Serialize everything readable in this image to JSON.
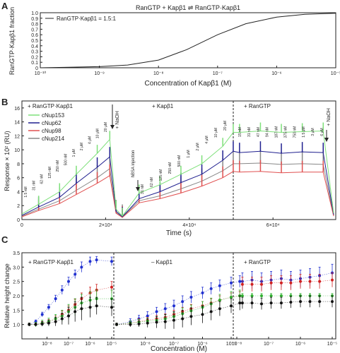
{
  "panel_labels": [
    "A",
    "B",
    "C"
  ],
  "colors": {
    "cNup153": "#7ee07a",
    "cNup62": "#1f1f8f",
    "cNup98": "#e05050",
    "cNup214": "#888888",
    "blue": "#2030d0",
    "red": "#d02020",
    "green": "#30b030",
    "black": "#111111",
    "axis": "#222222"
  },
  "chart_data": [
    {
      "panel": "A",
      "type": "line",
      "title": "RanGTP + Kapβ1 ⇌ RanGTP·Kapβ1",
      "legend": [
        "RanGTP·Kapβ1 = 1.5:1"
      ],
      "legend_position": "top-left",
      "xlabel": "Concentration of Kapβ1 (M)",
      "ylabel": "RanGTP·Kapβ1 fraction",
      "xscale": "log",
      "xlim": [
        1e-10,
        1e-05
      ],
      "ylim": [
        0,
        1.0
      ],
      "xticks": [
        "10⁻¹⁰",
        "10⁻⁹",
        "10⁻⁸",
        "10⁻⁷",
        "10⁻⁶",
        "10⁻⁵"
      ],
      "yticks": [
        "0",
        "0.1",
        "0.2",
        "0.3",
        "0.4",
        "0.5",
        "0.6",
        "0.7",
        "0.8",
        "0.9",
        "1.0"
      ],
      "series": [
        {
          "name": "RanGTP·Kapβ1 = 1.5:1",
          "x": [
            1e-10,
            3e-10,
            1e-09,
            3e-09,
            1e-08,
            3e-08,
            1e-07,
            3e-07,
            1e-06,
            3e-06,
            1e-05
          ],
          "values": [
            0.0,
            0.01,
            0.02,
            0.05,
            0.14,
            0.33,
            0.6,
            0.8,
            0.92,
            0.97,
            0.99
          ]
        }
      ]
    },
    {
      "panel": "B",
      "type": "line",
      "xlabel": "Time (s)",
      "ylabel": "Response × 10² (RU)",
      "xlim": [
        0,
        75000
      ],
      "ylim": [
        0,
        17
      ],
      "xticks": [
        "0",
        "2×10⁴",
        "4×10⁴",
        "6×10⁴"
      ],
      "yticks": [
        "0",
        "2",
        "4",
        "6",
        "8",
        "10",
        "12",
        "14",
        "16"
      ],
      "section_labels": [
        "+ RanGTP·Kapβ1",
        "+ Kapβ1",
        "+ RanGTP"
      ],
      "legend": [
        "cNup153",
        "cNup62",
        "cNup98",
        "cNup214"
      ],
      "annotations": {
        "naoh_1": "+ NaOH",
        "naoh_2": "+ NaOH",
        "hbsa": "hBSA injection",
        "conc_labels_1": [
          "1.5 nM",
          "31 nM",
          "62 nM",
          "125 nM",
          "250 nM",
          "500 nM",
          "1 μM",
          "2 μM",
          "4 μM",
          "10 μM",
          "20 μM"
        ],
        "conc_labels_2": [
          "31 nM",
          "62 nM",
          "125 nM",
          "250 nM",
          "500 nM",
          "1 μM",
          "2 μM",
          "4 μM",
          "10 μM",
          "20 μM"
        ],
        "conc_labels_3": [
          "15 nM",
          "31 nM",
          "47 nM",
          "94 nM",
          "187 nM",
          "375 nM",
          "750 nM",
          "1.5 μM",
          "3 μM",
          "6 μM"
        ]
      },
      "series": [
        {
          "name": "cNup153",
          "x": [
            0,
            4000,
            9000,
            13000,
            18000,
            21000,
            22500,
            24000,
            28000,
            33000,
            38000,
            43000,
            48000,
            50500,
            52000,
            57000,
            62000,
            67000,
            72000,
            74500
          ],
          "values": [
            0.8,
            2.2,
            4.0,
            6.5,
            9.5,
            11.5,
            1.5,
            0.5,
            3.8,
            5.0,
            6.5,
            8.0,
            10.5,
            12.5,
            12.5,
            12.7,
            12.5,
            12.6,
            12.7,
            0.9
          ]
        },
        {
          "name": "cNup62",
          "x": [
            0,
            4000,
            9000,
            13000,
            18000,
            21000,
            22500,
            24000,
            28000,
            33000,
            38000,
            43000,
            48000,
            50500,
            52000,
            57000,
            62000,
            67000,
            72000,
            74500
          ],
          "values": [
            0.6,
            1.8,
            3.2,
            5.2,
            7.5,
            9.0,
            1.2,
            0.4,
            3.0,
            4.0,
            5.3,
            6.5,
            8.5,
            9.8,
            9.6,
            9.8,
            9.5,
            9.7,
            9.6,
            0.7
          ]
        },
        {
          "name": "cNup98",
          "x": [
            0,
            4000,
            9000,
            13000,
            18000,
            21000,
            22500,
            24000,
            28000,
            33000,
            38000,
            43000,
            48000,
            50500,
            52000,
            57000,
            62000,
            67000,
            72000,
            74500
          ],
          "values": [
            0.4,
            1.3,
            2.3,
            3.6,
            5.2,
            6.3,
            0.9,
            0.3,
            2.4,
            3.0,
            3.8,
            4.8,
            6.0,
            6.9,
            6.8,
            6.9,
            6.7,
            6.8,
            6.8,
            0.5
          ]
        },
        {
          "name": "cNup214",
          "x": [
            0,
            4000,
            9000,
            13000,
            18000,
            21000,
            22500,
            24000,
            28000,
            33000,
            38000,
            43000,
            48000,
            50500,
            52000,
            57000,
            62000,
            67000,
            72000,
            74500
          ],
          "values": [
            0.5,
            1.5,
            2.7,
            4.2,
            6.0,
            7.3,
            1.0,
            0.35,
            2.7,
            3.4,
            4.4,
            5.5,
            7.0,
            8.0,
            8.0,
            8.1,
            7.9,
            8.0,
            7.9,
            0.6
          ]
        }
      ]
    },
    {
      "panel": "C",
      "type": "scatter",
      "xlabel": "Concentration (M)",
      "ylabel": "Relative height change",
      "xscale": "log",
      "ylim": [
        0.5,
        3.5
      ],
      "yticks": [
        "1.0",
        "1.5",
        "2.0",
        "2.5",
        "3.0",
        "3.5"
      ],
      "xticks": [
        "10⁻⁸",
        "10⁻⁷",
        "10⁻⁶",
        "10⁻⁵"
      ],
      "section_labels": [
        "+ RanGTP·Kapβ1",
        "– Kapβ1",
        "+ RanGTP"
      ],
      "sections": [
        {
          "x": [
            1.5e-09,
            3e-09,
            6e-09,
            1.2e-08,
            2.5e-08,
            5e-08,
            1e-07,
            2e-07,
            4e-07,
            1e-06,
            2e-06,
            1e-05
          ],
          "series": [
            {
              "color": "blue",
              "values": [
                1.0,
                1.1,
                1.35,
                1.6,
                1.9,
                2.2,
                2.5,
                2.75,
                3.0,
                3.2,
                3.25,
                3.2
              ],
              "err": [
                0.05,
                0.06,
                0.08,
                0.1,
                0.12,
                0.15,
                0.15,
                0.15,
                0.18,
                0.15,
                0.12,
                0.15
              ]
            },
            {
              "color": "red",
              "values": [
                1.0,
                1.0,
                1.05,
                1.1,
                1.2,
                1.35,
                1.5,
                1.7,
                1.9,
                2.1,
                2.2,
                2.3
              ],
              "err": [
                0.05,
                0.05,
                0.06,
                0.08,
                0.1,
                0.12,
                0.15,
                0.18,
                0.2,
                0.2,
                0.2,
                0.2
              ]
            },
            {
              "color": "green",
              "values": [
                1.0,
                1.0,
                1.05,
                1.1,
                1.2,
                1.3,
                1.45,
                1.6,
                1.75,
                1.85,
                1.9,
                1.9
              ],
              "err": [
                0.05,
                0.08,
                0.1,
                0.12,
                0.15,
                0.2,
                0.25,
                0.3,
                0.3,
                0.3,
                0.3,
                0.3
              ]
            },
            {
              "color": "black",
              "values": [
                1.0,
                1.0,
                1.02,
                1.05,
                1.1,
                1.2,
                1.3,
                1.45,
                1.55,
                1.6,
                1.65,
                1.6
              ],
              "err": [
                0.05,
                0.05,
                0.08,
                0.1,
                0.15,
                0.2,
                0.3,
                0.35,
                0.4,
                0.35,
                0.3,
                0.3
              ]
            }
          ]
        },
        {
          "x": [
            1e-09,
            3e-09,
            6e-09,
            1.2e-08,
            2.5e-08,
            5e-08,
            1e-07,
            2e-07,
            4e-07,
            1e-06,
            2e-06,
            4e-06,
            1e-05,
            2e-05
          ],
          "series": [
            {
              "color": "blue",
              "values": [
                1.0,
                1.1,
                1.2,
                1.3,
                1.45,
                1.55,
                1.65,
                1.8,
                1.95,
                2.1,
                2.25,
                2.35,
                2.45,
                2.5
              ],
              "err": [
                0.05,
                0.1,
                0.12,
                0.15,
                0.15,
                0.18,
                0.2,
                0.2,
                0.2,
                0.2,
                0.2,
                0.2,
                0.2,
                0.2
              ]
            },
            {
              "color": "red",
              "values": [
                1.0,
                1.05,
                1.1,
                1.15,
                1.2,
                1.25,
                1.35,
                1.45,
                1.55,
                1.65,
                1.75,
                1.85,
                1.95,
                2.0
              ],
              "err": [
                0.05,
                0.08,
                0.1,
                0.1,
                0.12,
                0.12,
                0.15,
                0.15,
                0.15,
                0.15,
                0.15,
                0.15,
                0.15,
                0.15
              ]
            },
            {
              "color": "green",
              "values": [
                1.0,
                1.05,
                1.08,
                1.12,
                1.15,
                1.2,
                1.28,
                1.38,
                1.48,
                1.6,
                1.72,
                1.85,
                1.95,
                2.0
              ],
              "err": [
                0.05,
                0.08,
                0.1,
                0.1,
                0.12,
                0.15,
                0.15,
                0.2,
                0.2,
                0.2,
                0.2,
                0.2,
                0.2,
                0.2
              ]
            },
            {
              "color": "black",
              "values": [
                1.0,
                1.0,
                1.02,
                1.05,
                1.08,
                1.1,
                1.15,
                1.2,
                1.28,
                1.35,
                1.45,
                1.55,
                1.65,
                1.75
              ],
              "err": [
                0.05,
                0.08,
                0.1,
                0.15,
                0.2,
                0.25,
                0.3,
                0.3,
                0.3,
                0.3,
                0.3,
                0.25,
                0.25,
                0.25
              ]
            }
          ]
        },
        {
          "x": [
            1.5e-08,
            3e-08,
            6e-08,
            1.2e-07,
            2.5e-07,
            5e-07,
            1e-06,
            2e-06,
            4e-06,
            1e-05
          ],
          "series": [
            {
              "color": "blue",
              "values": [
                2.5,
                2.55,
                2.5,
                2.55,
                2.6,
                2.55,
                2.6,
                2.65,
                2.7,
                2.8
              ],
              "err": [
                0.3,
                0.3,
                0.3,
                0.3,
                0.3,
                0.3,
                0.3,
                0.3,
                0.3,
                0.3
              ]
            },
            {
              "color": "red",
              "values": [
                2.4,
                2.4,
                2.4,
                2.45,
                2.45,
                2.45,
                2.5,
                2.5,
                2.5,
                2.55
              ],
              "err": [
                0.25,
                0.25,
                0.25,
                0.25,
                0.25,
                0.25,
                0.25,
                0.25,
                0.25,
                0.25
              ]
            },
            {
              "color": "green",
              "values": [
                2.0,
                2.0,
                2.0,
                2.0,
                2.0,
                2.0,
                2.0,
                2.0,
                2.0,
                2.0
              ],
              "err": [
                0.08,
                0.08,
                0.08,
                0.08,
                0.08,
                0.08,
                0.08,
                0.08,
                0.08,
                0.08
              ]
            },
            {
              "color": "black",
              "values": [
                1.75,
                1.75,
                1.72,
                1.75,
                1.75,
                1.78,
                1.8,
                1.8,
                1.8,
                1.8
              ],
              "err": [
                0.2,
                0.2,
                0.2,
                0.2,
                0.2,
                0.2,
                0.2,
                0.2,
                0.2,
                0.2
              ]
            }
          ]
        }
      ]
    }
  ]
}
